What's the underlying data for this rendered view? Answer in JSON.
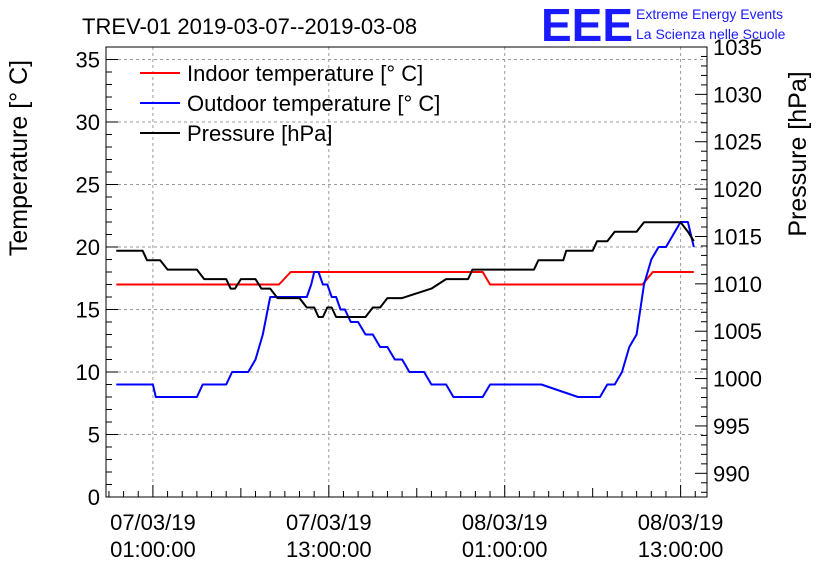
{
  "header": {
    "title": "TREV-01 2019-03-07--2019-03-08",
    "logo_text": "EEE",
    "logo_line1": "Extreme Energy Events",
    "logo_line2": "La Scienza nelle Scuole",
    "logo_color": "#1a1aff"
  },
  "chart_data": {
    "type": "line",
    "title": "TREV-01 2019-03-07--2019-03-08",
    "ylabel": "Temperature [° C]",
    "y2label": "Pressure [hPa]",
    "xlabel": "",
    "ylim": [
      0,
      36
    ],
    "y2lim": [
      987.5,
      1035
    ],
    "yticks": [
      0,
      5,
      10,
      15,
      20,
      25,
      30,
      35
    ],
    "y2ticks": [
      990,
      995,
      1000,
      1005,
      1010,
      1015,
      1020,
      1025,
      1030,
      1035
    ],
    "x_unit": "hours since 07/03/19 00:00",
    "xlim": [
      -2.2,
      38.8
    ],
    "xticks": [
      {
        "x": 1,
        "line1": "07/03/19",
        "line2": "01:00:00"
      },
      {
        "x": 13,
        "line1": "07/03/19",
        "line2": "13:00:00"
      },
      {
        "x": 25,
        "line1": "08/03/19",
        "line2": "01:00:00"
      },
      {
        "x": 37,
        "line1": "08/03/19",
        "line2": "13:00:00"
      }
    ],
    "grid": true,
    "legend_position": "top-left",
    "series": [
      {
        "name": "Indoor temperature [° C]",
        "color": "#ff0000",
        "axis": "left",
        "x": [
          -1.5,
          9.6,
          10.4,
          23.5,
          24.0,
          34.4,
          35.1,
          37.9
        ],
        "y": [
          17,
          17,
          18,
          18,
          17,
          17,
          18,
          18
        ]
      },
      {
        "name": "Outdoor temperature [° C]",
        "color": "#0000ff",
        "axis": "left",
        "x": [
          -1.5,
          1.0,
          1.2,
          4.0,
          4.4,
          6.0,
          6.4,
          7.5,
          8.0,
          8.5,
          9.0,
          9.5,
          10.0,
          11.5,
          11.8,
          12.0,
          12.3,
          12.6,
          12.9,
          13.2,
          13.5,
          13.8,
          14.1,
          14.5,
          15.0,
          15.5,
          16.0,
          16.5,
          17.0,
          17.5,
          18.0,
          18.5,
          19.0,
          19.5,
          20.0,
          20.5,
          21.0,
          21.5,
          22.0,
          23.0,
          23.5,
          24.0,
          27.0,
          27.5,
          30.0,
          30.5,
          31.5,
          32.0,
          32.5,
          33.0,
          33.5,
          34.0,
          34.5,
          35.0,
          35.5,
          36.0,
          36.5,
          37.0,
          37.5,
          37.9
        ],
        "y": [
          9,
          9,
          8,
          8,
          9,
          9,
          10,
          10,
          11,
          13,
          16,
          16,
          16,
          16,
          17,
          18,
          18,
          17,
          17,
          16,
          16,
          15,
          15,
          14,
          14,
          13,
          13,
          12,
          12,
          11,
          11,
          10,
          10,
          10,
          9,
          9,
          9,
          8,
          8,
          8,
          8,
          9,
          9,
          9,
          8,
          8,
          8,
          9,
          9,
          10,
          12,
          13,
          17,
          19,
          20,
          20,
          21,
          22,
          22,
          20
        ]
      },
      {
        "name": "Pressure [hPa]",
        "color": "#000000",
        "axis": "right",
        "x": [
          -1.5,
          0.3,
          0.6,
          1.5,
          2.0,
          4.0,
          4.5,
          6.0,
          6.3,
          6.6,
          7.0,
          8.0,
          8.4,
          9.0,
          9.5,
          10.0,
          10.5,
          11.0,
          11.5,
          12.0,
          12.3,
          12.6,
          12.9,
          13.2,
          13.5,
          14.0,
          15.5,
          16.0,
          16.5,
          17.0,
          17.5,
          18.0,
          20.0,
          21.0,
          22.5,
          22.8,
          23.0,
          23.3,
          23.6,
          27.0,
          27.3,
          29.0,
          29.2,
          29.5,
          30.0,
          31.0,
          31.3,
          32.0,
          32.5,
          33.0,
          33.5,
          34.0,
          34.5,
          37.0,
          37.5,
          37.9
        ],
        "y": [
          1013.5,
          1013.5,
          1012.5,
          1012.5,
          1011.5,
          1011.5,
          1010.5,
          1010.5,
          1009.5,
          1009.5,
          1010.5,
          1010.5,
          1009.5,
          1009.5,
          1008.5,
          1008.5,
          1008.5,
          1008.5,
          1007.5,
          1007.5,
          1006.5,
          1006.5,
          1007.5,
          1007.5,
          1006.5,
          1006.5,
          1006.5,
          1007.5,
          1007.5,
          1008.5,
          1008.5,
          1008.5,
          1009.5,
          1010.5,
          1010.5,
          1011.5,
          1011.5,
          1011.5,
          1011.5,
          1011.5,
          1012.5,
          1012.5,
          1013.5,
          1013.5,
          1013.5,
          1013.5,
          1014.5,
          1014.5,
          1015.5,
          1015.5,
          1015.5,
          1015.5,
          1016.5,
          1016.5,
          1015.5,
          1014.5
        ]
      }
    ]
  }
}
